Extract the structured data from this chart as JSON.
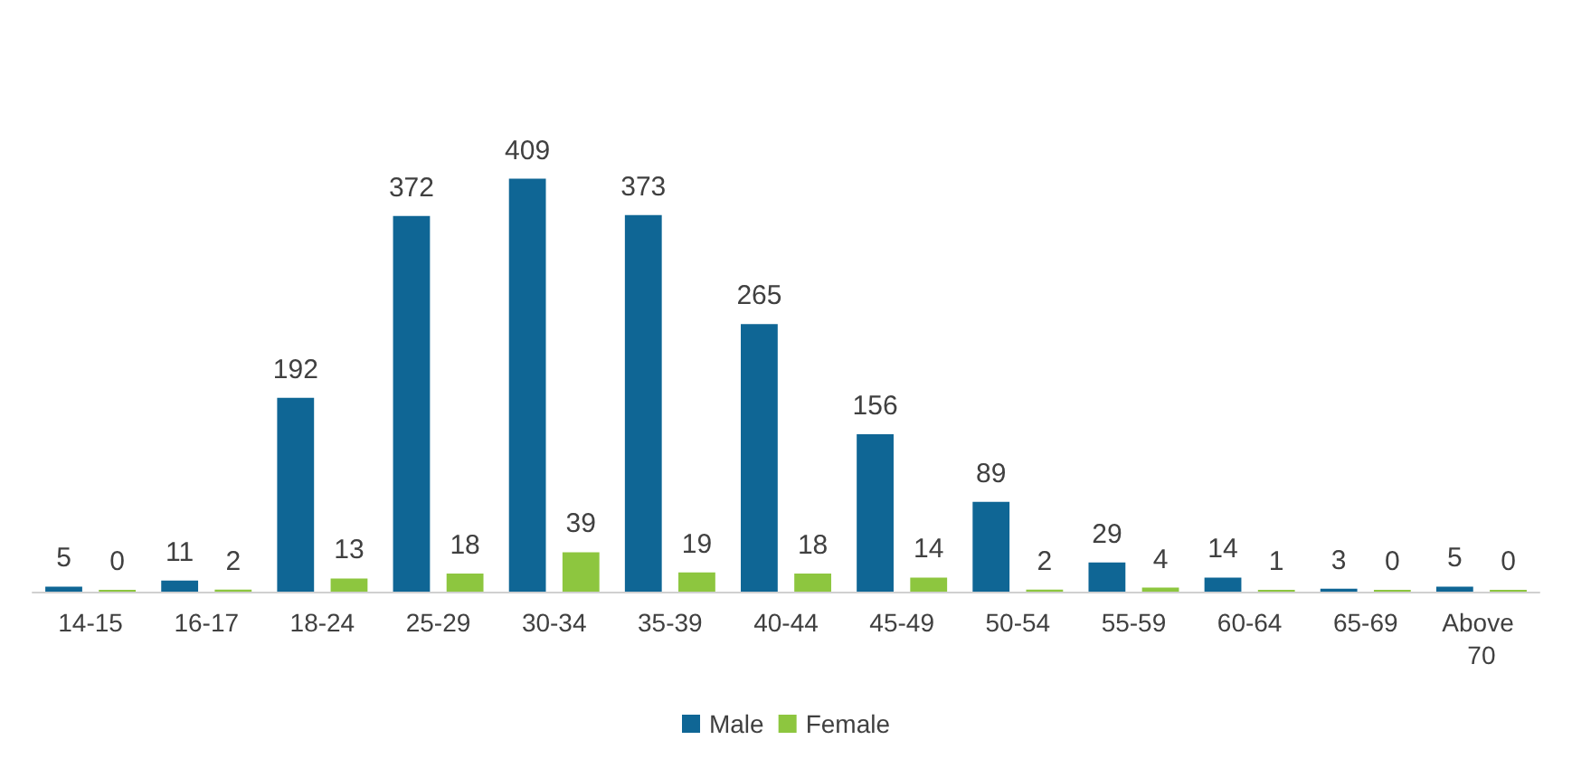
{
  "chart_data": {
    "type": "bar",
    "categories": [
      "14-15",
      "16-17",
      "18-24",
      "25-29",
      "30-34",
      "35-39",
      "40-44",
      "45-49",
      "50-54",
      "55-59",
      "60-64",
      "65-69",
      "Above 70"
    ],
    "series": [
      {
        "name": "Male",
        "color": "#0f6695",
        "values": [
          5,
          11,
          192,
          372,
          409,
          373,
          265,
          156,
          89,
          29,
          14,
          3,
          5
        ]
      },
      {
        "name": "Female",
        "color": "#8dc63f",
        "values": [
          0,
          2,
          13,
          18,
          39,
          19,
          18,
          14,
          2,
          4,
          1,
          0,
          0
        ]
      }
    ],
    "data_labels": true,
    "legend": "bottom"
  }
}
